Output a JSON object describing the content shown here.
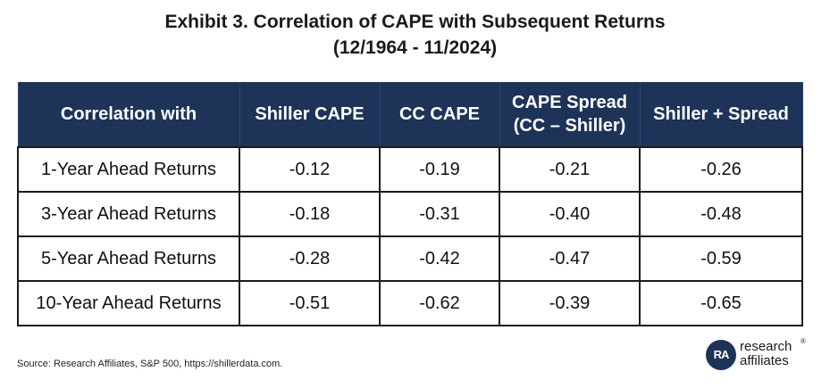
{
  "title": {
    "line1": "Exhibit 3. Correlation of CAPE with Subsequent Returns",
    "line2": "(12/1964 - 11/2024)"
  },
  "table": {
    "headers": {
      "col0": "Correlation with",
      "col1": "Shiller CAPE",
      "col2": "CC CAPE",
      "col3_line1": "CAPE Spread",
      "col3_line2": "(CC – Shiller)",
      "col4": "Shiller + Spread"
    },
    "rows": [
      {
        "label": "1-Year Ahead Returns",
        "shiller": "-0.12",
        "cc": "-0.19",
        "spread": "-0.21",
        "combined": "-0.26"
      },
      {
        "label": "3-Year Ahead Returns",
        "shiller": "-0.18",
        "cc": "-0.31",
        "spread": "-0.40",
        "combined": "-0.48"
      },
      {
        "label": "5-Year Ahead Returns",
        "shiller": "-0.28",
        "cc": "-0.42",
        "spread": "-0.47",
        "combined": "-0.59"
      },
      {
        "label": "10-Year Ahead Returns",
        "shiller": "-0.51",
        "cc": "-0.62",
        "spread": "-0.39",
        "combined": "-0.65"
      }
    ],
    "header_bg": "#1e3358"
  },
  "source": "Source: Research Affiliates, S&P 500, https://shillerdata.com.",
  "logo": {
    "line1": "research",
    "line2": "affiliates",
    "mark": "RA",
    "registered": "®"
  }
}
